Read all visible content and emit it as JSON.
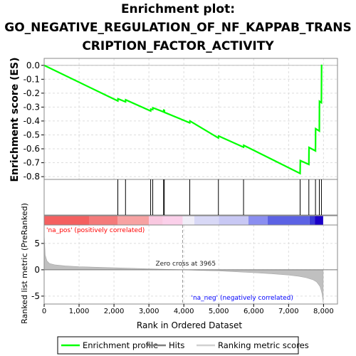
{
  "chart_data": {
    "type": "line",
    "title_lines": [
      "Enrichment plot:",
      "GO_NEGATIVE_REGULATION_OF_NF_KAPPAB_TRANS",
      "CRIPTION_FACTOR_ACTIVITY"
    ],
    "xlabel": "Rank in Ordered Dataset",
    "ylabel_top": "Enrichment score (ES)",
    "ylabel_bottom": "Ranked list metric (PreRanked)",
    "xlim": [
      0,
      8400
    ],
    "x_ticks": [
      0,
      1000,
      2000,
      3000,
      4000,
      5000,
      6000,
      7000,
      8000
    ],
    "x_tick_labels": [
      "0",
      "1,000",
      "2,000",
      "3,000",
      "4,000",
      "5,000",
      "6,000",
      "7,000",
      "8,000"
    ],
    "es_ylim": [
      -0.82,
      0.05
    ],
    "es_ticks": [
      0.0,
      -0.1,
      -0.2,
      -0.3,
      -0.4,
      -0.5,
      -0.6,
      -0.7,
      -0.8
    ],
    "es_tick_labels": [
      "0.0",
      "-0.1",
      "-0.2",
      "-0.3",
      "-0.4",
      "-0.5",
      "-0.6",
      "-0.7",
      "-0.8"
    ],
    "metric_ylim": [
      -6.5,
      8.5
    ],
    "metric_ticks": [
      5,
      0,
      -5
    ],
    "metric_tick_labels": [
      "5",
      "0",
      "-5"
    ],
    "grid": true,
    "enrichment_profile": {
      "name": "Enrichment profile",
      "color": "#00ff00",
      "x": [
        0,
        2110,
        2115,
        2330,
        2335,
        3050,
        3055,
        3110,
        3115,
        3420,
        3425,
        3440,
        3445,
        4170,
        4175,
        4990,
        4995,
        5710,
        5715,
        7330,
        7335,
        7580,
        7585,
        7770,
        7775,
        7880,
        7885,
        7940,
        7945
      ],
      "y": [
        0.0,
        -0.256,
        -0.24,
        -0.262,
        -0.248,
        -0.328,
        -0.315,
        -0.318,
        -0.305,
        -0.335,
        -0.322,
        -0.323,
        -0.338,
        -0.413,
        -0.4,
        -0.522,
        -0.508,
        -0.588,
        -0.575,
        -0.777,
        -0.685,
        -0.712,
        -0.59,
        -0.615,
        -0.455,
        -0.472,
        -0.258,
        -0.268,
        0.005
      ]
    },
    "hits": {
      "name": "Hits",
      "color": "#000000",
      "x": [
        2110,
        2330,
        3050,
        3110,
        3420,
        3440,
        4170,
        4990,
        5710,
        7330,
        7580,
        7770,
        7880,
        7940
      ]
    },
    "ranking_metric": {
      "name": "Ranking metric scores",
      "color": "#c0c0c0",
      "x": [
        0,
        30,
        80,
        150,
        300,
        600,
        1000,
        1500,
        2000,
        2500,
        3000,
        3500,
        3965,
        4500,
        5000,
        5500,
        6000,
        6500,
        7000,
        7300,
        7500,
        7700,
        7800,
        7850,
        7900,
        7930,
        7960,
        7980,
        7990
      ],
      "y": [
        6.8,
        2.8,
        1.7,
        1.2,
        0.95,
        0.75,
        0.6,
        0.48,
        0.38,
        0.28,
        0.18,
        0.08,
        0.0,
        -0.12,
        -0.22,
        -0.38,
        -0.55,
        -0.75,
        -1.0,
        -1.25,
        -1.5,
        -1.9,
        -2.3,
        -2.7,
        -3.2,
        -3.8,
        -4.6,
        -5.5,
        -6.2
      ]
    },
    "color_bar": {
      "segments": [
        {
          "start": 0,
          "end": 1300,
          "color": "#f46060"
        },
        {
          "start": 1300,
          "end": 2100,
          "color": "#f47a7a"
        },
        {
          "start": 2100,
          "end": 3000,
          "color": "#f7a2a2"
        },
        {
          "start": 3000,
          "end": 3400,
          "color": "#f9c8e0"
        },
        {
          "start": 3400,
          "end": 3965,
          "color": "#fbd0ea"
        },
        {
          "start": 3965,
          "end": 4300,
          "color": "#f0eef8"
        },
        {
          "start": 4300,
          "end": 5000,
          "color": "#d8d8f6"
        },
        {
          "start": 5000,
          "end": 5850,
          "color": "#c8c8f4"
        },
        {
          "start": 5850,
          "end": 6400,
          "color": "#8a8ef0"
        },
        {
          "start": 6400,
          "end": 7600,
          "color": "#5c62e4"
        },
        {
          "start": 7600,
          "end": 7750,
          "color": "#3a3ad8"
        },
        {
          "start": 7750,
          "end": 7990,
          "color": "#1a00c8"
        }
      ]
    },
    "annotations": {
      "zero_cross_x": 3965,
      "zero_cross_text": "Zero cross at 3965",
      "pos_label": "'na_pos' (positively correlated)",
      "neg_label": "'na_neg' (negatively correlated)",
      "pos_color": "#ff0000",
      "neg_color": "#0000ff"
    },
    "legend": {
      "placement": "bottom",
      "items": [
        {
          "label": "Enrichment profile",
          "kind": "line",
          "color": "#00ff00"
        },
        {
          "label": "Hits",
          "kind": "line",
          "color": "#808080"
        },
        {
          "label": "Ranking metric scores",
          "kind": "line",
          "color": "#d0d0d0"
        }
      ]
    }
  }
}
